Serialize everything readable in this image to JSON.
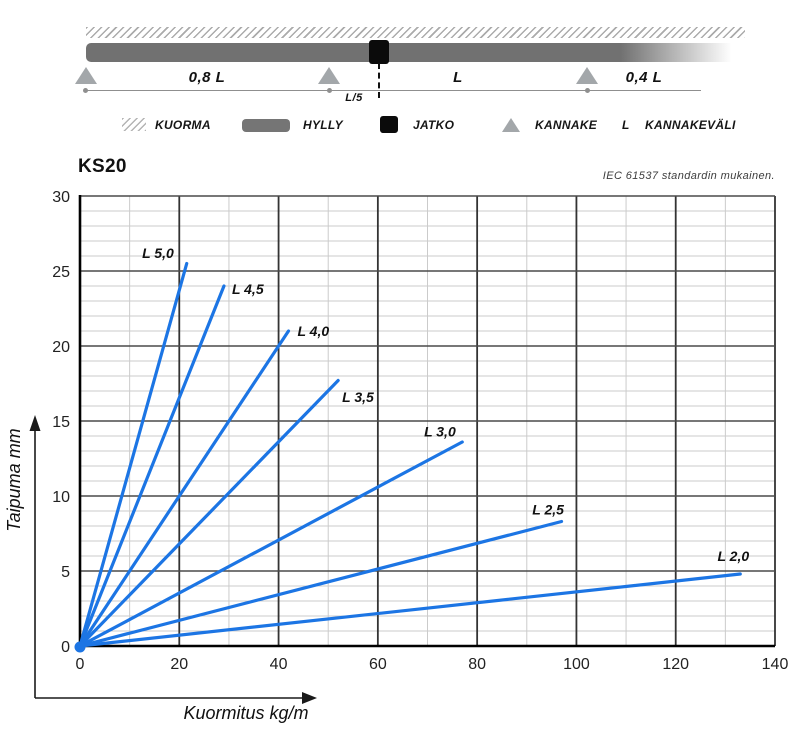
{
  "diagram": {
    "span_left": "0,8 L",
    "span_middle": "L",
    "span_right": "0,4 L",
    "joint_offset": "L/5"
  },
  "legend": {
    "items": [
      {
        "id": "kuorma",
        "label": "KUORMA"
      },
      {
        "id": "hylly",
        "label": "HYLLY"
      },
      {
        "id": "jatko",
        "label": "JATKO"
      },
      {
        "id": "kannake",
        "label": "KANNAKE"
      },
      {
        "id": "kannakevali",
        "symbol": "L",
        "label": "KANNAKEVÄLI"
      }
    ]
  },
  "chart_data": {
    "type": "line",
    "title": "KS20",
    "note": "IEC 61537 standardin mukainen.",
    "xlabel": "Kuormitus kg/m",
    "ylabel": "Taipuma mm",
    "xlim": [
      0,
      140
    ],
    "ylim": [
      0,
      30
    ],
    "x_ticks": [
      0,
      20,
      40,
      60,
      80,
      100,
      120,
      140
    ],
    "y_ticks": [
      0,
      5,
      10,
      15,
      20,
      25,
      30
    ],
    "x_minor_step": 10,
    "y_minor_step": 1,
    "grid": true,
    "legend_position": "inline-labels",
    "line_color": "#1c75e4",
    "series": [
      {
        "name": "L 5,0",
        "x": [
          0,
          21.5
        ],
        "y": [
          0,
          25.5
        ],
        "label_at": [
          15.7,
          26.2
        ]
      },
      {
        "name": "L 4,5",
        "x": [
          0,
          29
        ],
        "y": [
          0,
          24
        ],
        "label_at": [
          33.8,
          23.8
        ]
      },
      {
        "name": "L 4,0",
        "x": [
          0,
          42
        ],
        "y": [
          0,
          21
        ],
        "label_at": [
          47,
          21
        ]
      },
      {
        "name": "L 3,5",
        "x": [
          0,
          52
        ],
        "y": [
          0,
          17.7
        ],
        "label_at": [
          56,
          16.6
        ]
      },
      {
        "name": "L 3,0",
        "x": [
          0,
          77
        ],
        "y": [
          0,
          13.6
        ],
        "label_at": [
          72.5,
          14.3
        ]
      },
      {
        "name": "L 2,5",
        "x": [
          0,
          97
        ],
        "y": [
          0,
          8.3
        ],
        "label_at": [
          94.3,
          9.1
        ]
      },
      {
        "name": "L 2,0",
        "x": [
          0,
          133
        ],
        "y": [
          0,
          4.8
        ],
        "label_at": [
          131.6,
          6.0
        ]
      }
    ]
  }
}
